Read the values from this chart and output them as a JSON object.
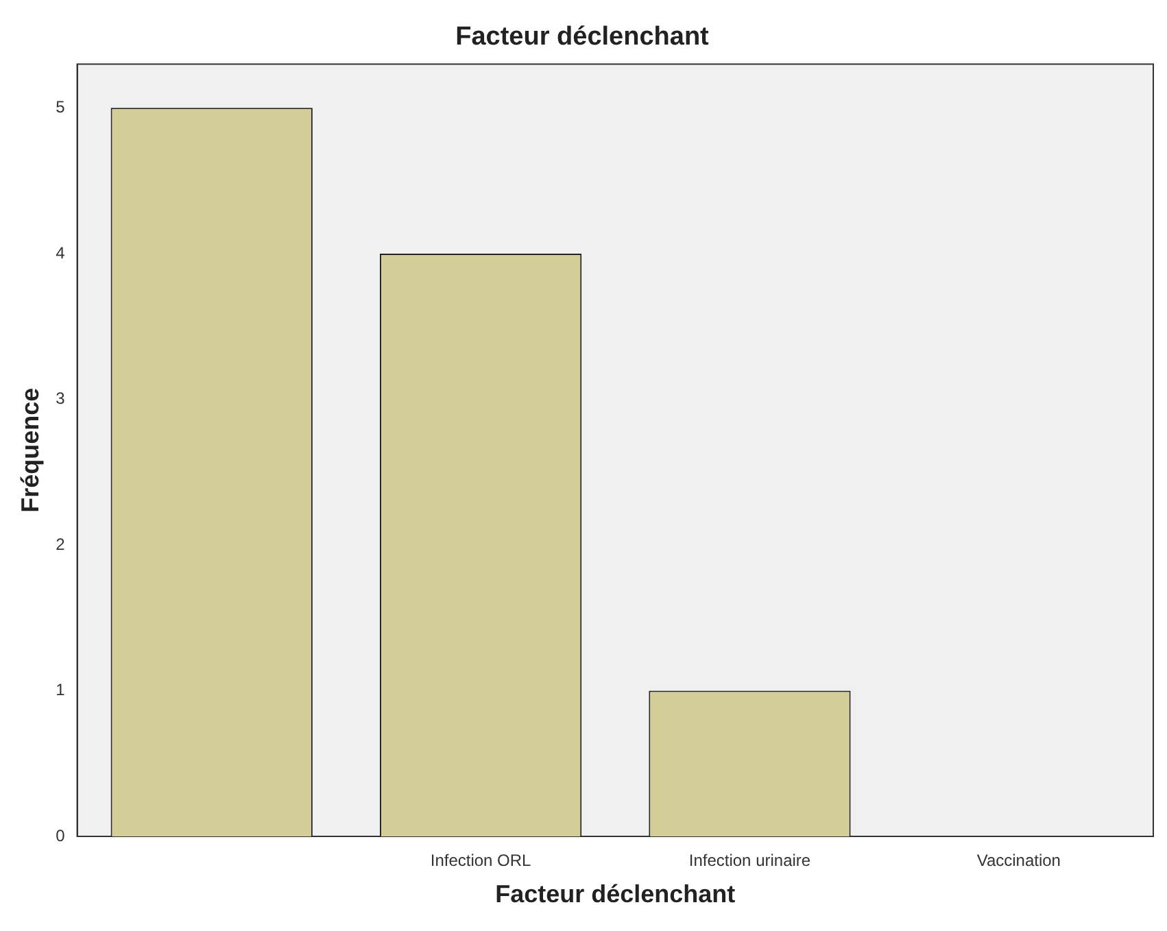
{
  "chart_data": {
    "type": "bar",
    "title": "Facteur déclenchant",
    "xlabel": "Facteur déclenchant",
    "ylabel": "Fréquence",
    "categories": [
      null,
      "Infection ORL",
      "Infection urinaire",
      "Vaccination"
    ],
    "values": [
      5,
      4,
      1,
      0
    ],
    "color": "#d3ce98",
    "ylim": [
      0,
      5.3
    ],
    "yticks": [
      0,
      1,
      2,
      3,
      4,
      5
    ],
    "grid": false,
    "legend": false
  }
}
